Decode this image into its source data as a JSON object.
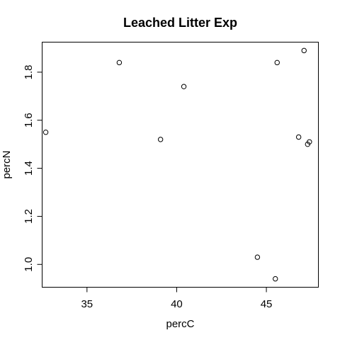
{
  "chart_data": {
    "type": "scatter",
    "title": "Leached Litter Exp",
    "xlabel": "percC",
    "ylabel": "percN",
    "xlim": [
      32.5,
      47.9
    ],
    "ylim": [
      0.905,
      1.925
    ],
    "xticks": [
      35,
      40,
      45
    ],
    "yticks": [
      1.0,
      1.2,
      1.4,
      1.6,
      1.8
    ],
    "ytick_labels": [
      "1.0",
      "1.2",
      "1.4",
      "1.6",
      "1.8"
    ],
    "xtick_labels": [
      "35",
      "40",
      "45"
    ],
    "grid": false,
    "points": [
      {
        "x": 32.7,
        "y": 1.55
      },
      {
        "x": 36.8,
        "y": 1.84
      },
      {
        "x": 39.1,
        "y": 1.52
      },
      {
        "x": 40.4,
        "y": 1.74
      },
      {
        "x": 44.5,
        "y": 1.03
      },
      {
        "x": 45.5,
        "y": 0.94
      },
      {
        "x": 45.6,
        "y": 1.84
      },
      {
        "x": 46.8,
        "y": 1.53
      },
      {
        "x": 47.1,
        "y": 1.89
      },
      {
        "x": 47.3,
        "y": 1.5
      },
      {
        "x": 47.4,
        "y": 1.51
      }
    ]
  }
}
